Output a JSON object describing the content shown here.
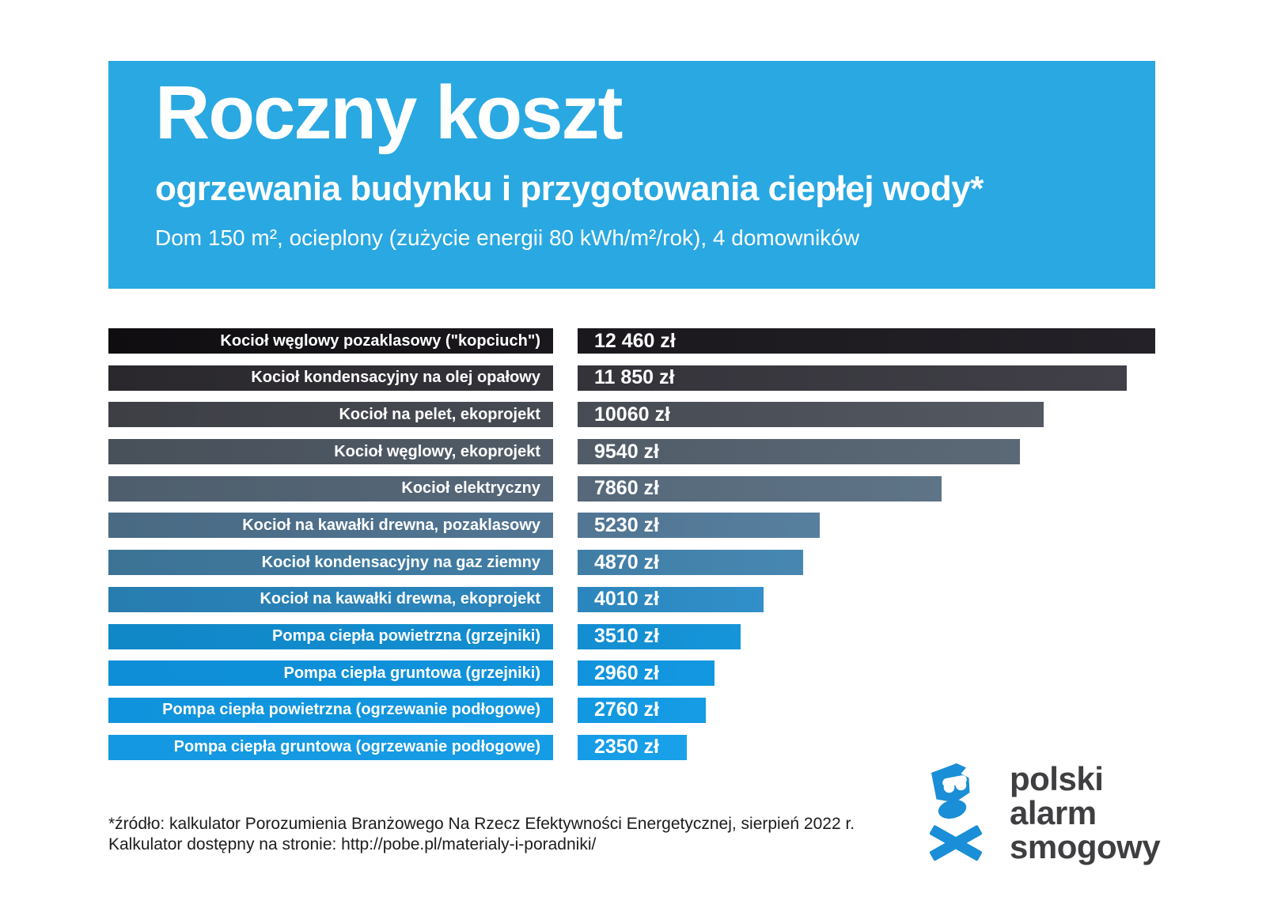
{
  "header": {
    "title": "Roczny koszt",
    "subtitle": "ogrzewania budynku i przygotowania ciepłej wody*",
    "assumptions": "Dom 150 m², ocieplony (zużycie energii 80 kWh/m²/rok), 4 domowników",
    "background_color": "#29a8e2"
  },
  "chart_data": {
    "type": "bar",
    "orientation": "horizontal",
    "title": "Roczny koszt ogrzewania budynku i przygotowania ciepłej wody",
    "unit": "zł",
    "max_value": 12460,
    "value_axis_range": [
      0,
      12460
    ],
    "grid": false,
    "legend": false,
    "categories": [
      "Kocioł węglowy pozaklasowy (\"kopciuch\")",
      "Kocioł kondensacyjny na olej opałowy",
      "Kocioł na pelet, ekoprojekt",
      "Kocioł węglowy, ekoprojekt",
      "Kocioł elektryczny",
      "Kocioł na kawałki drewna, pozaklasowy",
      "Kocioł kondensacyjny na gaz ziemny",
      "Kocioł na kawałki drewna, ekoprojekt",
      "Pompa ciepła powietrzna (grzejniki)",
      "Pompa ciepła gruntowa (grzejniki)",
      "Pompa ciepła powietrzna (ogrzewanie podłogowe)",
      "Pompa ciepła gruntowa (ogrzewanie podłogowe)"
    ],
    "values": [
      12460,
      11850,
      10060,
      9540,
      7860,
      5230,
      4870,
      4010,
      3510,
      2960,
      2760,
      2350
    ],
    "value_labels": [
      "12 460 zł",
      "11 850 zł",
      "10060 zł",
      "9540 zł",
      "7860 zł",
      "5230 zł",
      "4870 zł",
      "4010 zł",
      "3510 zł",
      "2960 zł",
      "2760 zł",
      "2350 zł"
    ],
    "row_colors": [
      [
        "#0f0d10",
        "#1a181c",
        "#242228"
      ],
      [
        "#2a282c",
        "#34333a",
        "#414048"
      ],
      [
        "#3d3f45",
        "#474b53",
        "#535861"
      ],
      [
        "#485059",
        "#515c68",
        "#5b6977"
      ],
      [
        "#4e5e6d",
        "#566879",
        "#5e7487"
      ],
      [
        "#4a6a83",
        "#517593",
        "#577f9e"
      ],
      [
        "#3c7395",
        "#417ea6",
        "#4687b1"
      ],
      [
        "#277db0",
        "#2c86bd",
        "#318fc9"
      ],
      [
        "#1087c7",
        "#138ed1",
        "#1695da"
      ],
      [
        "#0d8ed6",
        "#1093dc",
        "#1298e1"
      ],
      [
        "#0f93dc",
        "#1298e1",
        "#159ce5"
      ],
      [
        "#1498e1",
        "#169ce5",
        "#18a1e9"
      ]
    ]
  },
  "footer": {
    "source_line1": "*źródło: kalkulator Porozumienia Branżowego Na Rzecz Efektywności Energetycznej, sierpień 2022 r.",
    "source_line2": "Kalkulator dostępny na stronie: http://pobe.pl/materialy-i-poradniki/"
  },
  "logo": {
    "line1": "polski",
    "line2": "alarm",
    "line3": "smogowy",
    "icon": "skull-gas-mask-crossbones-icon",
    "icon_color": "#1a8ed6",
    "text_color": "#3f3e41"
  }
}
